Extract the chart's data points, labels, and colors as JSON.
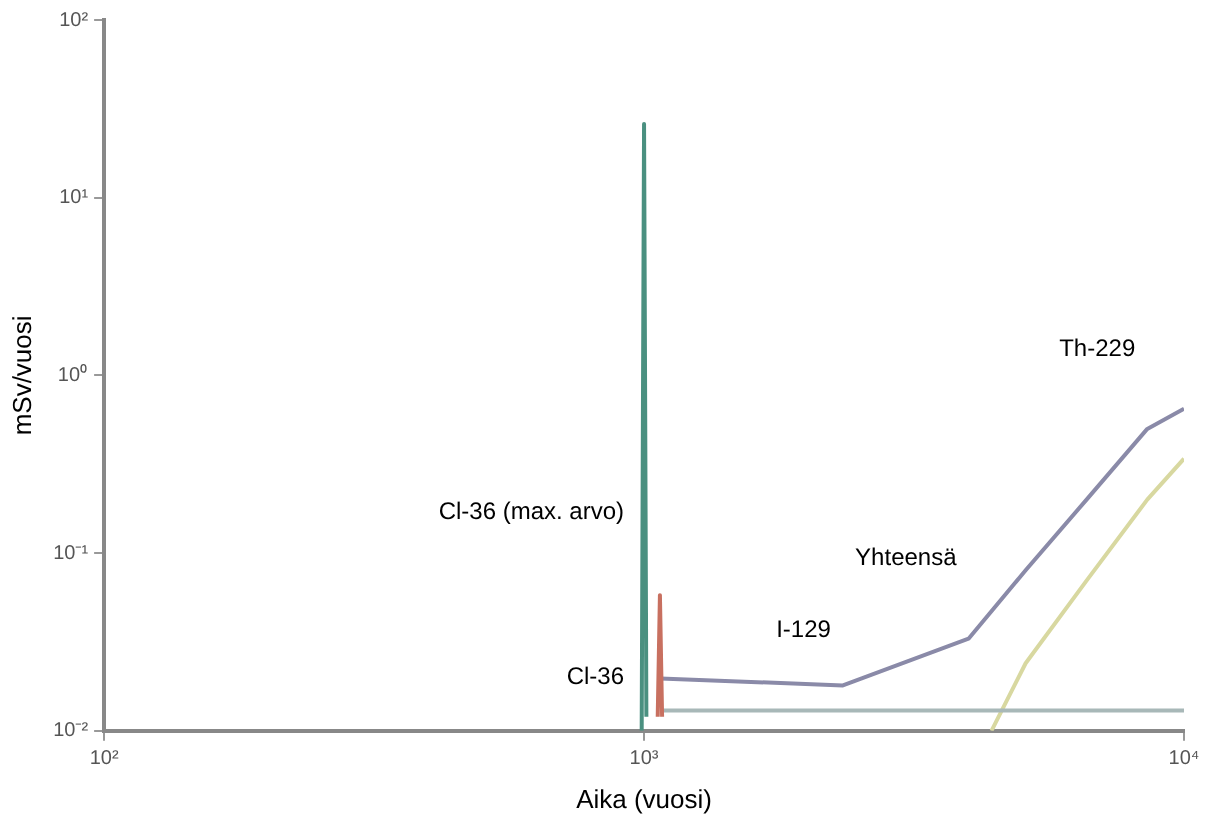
{
  "chart_data": {
    "type": "line",
    "xlabel": "Aika (vuosi)",
    "ylabel": "mSv/vuosi",
    "log": "xy",
    "grid": false,
    "legend": false,
    "marker": "none",
    "xlim": [
      100,
      10000
    ],
    "xticks": [
      {
        "value": 100,
        "label": "10²"
      },
      {
        "value": 1000,
        "label": "10³"
      },
      {
        "value": 10000,
        "label": "10⁴"
      }
    ],
    "ylim": [
      0.01,
      100
    ],
    "yticks": [
      {
        "value": 0.01,
        "label": "10⁻²"
      },
      {
        "value": 0.1,
        "label": "10⁻¹"
      },
      {
        "value": 1,
        "label": "10⁰"
      },
      {
        "value": 10,
        "label": "10¹"
      },
      {
        "value": 100,
        "label": "10²"
      }
    ],
    "series": [
      {
        "color": "#4a9080",
        "x": [
          990,
          1000,
          1010
        ],
        "values": [
          0.01,
          26,
          0.012
        ]
      },
      {
        "color": "#c87060",
        "x": [
          1060,
          1070,
          1080
        ],
        "values": [
          0.012,
          0.058,
          0.012
        ]
      },
      {
        "color": "#8a8aa8",
        "x": [
          1072,
          2335,
          3990,
          5090,
          6600,
          8550,
          10000
        ],
        "values": [
          0.0197,
          0.018,
          0.033,
          0.08,
          0.2,
          0.5,
          0.65
        ]
      },
      {
        "color": "#a8b8b8",
        "x": [
          1072,
          10000
        ],
        "values": [
          0.013,
          0.013
        ]
      },
      {
        "color": "#d8d8a0",
        "x": [
          4400,
          5090,
          6600,
          8550,
          10000
        ],
        "values": [
          0.01,
          0.024,
          0.07,
          0.2,
          0.34
        ]
      }
    ],
    "annotations": [
      {
        "text": "Cl-36 (max. arvo)",
        "x": 1000,
        "y": 0.17
      },
      {
        "text": "Cl-36",
        "x": 1000,
        "y": 0.02
      },
      {
        "text": "I-129",
        "x": 2335,
        "y": 0.013
      },
      {
        "text": "Yhteensä",
        "x": 3990,
        "y": 0.033
      },
      {
        "text": "Th-229",
        "x": 8550,
        "y": 0.5
      }
    ]
  }
}
